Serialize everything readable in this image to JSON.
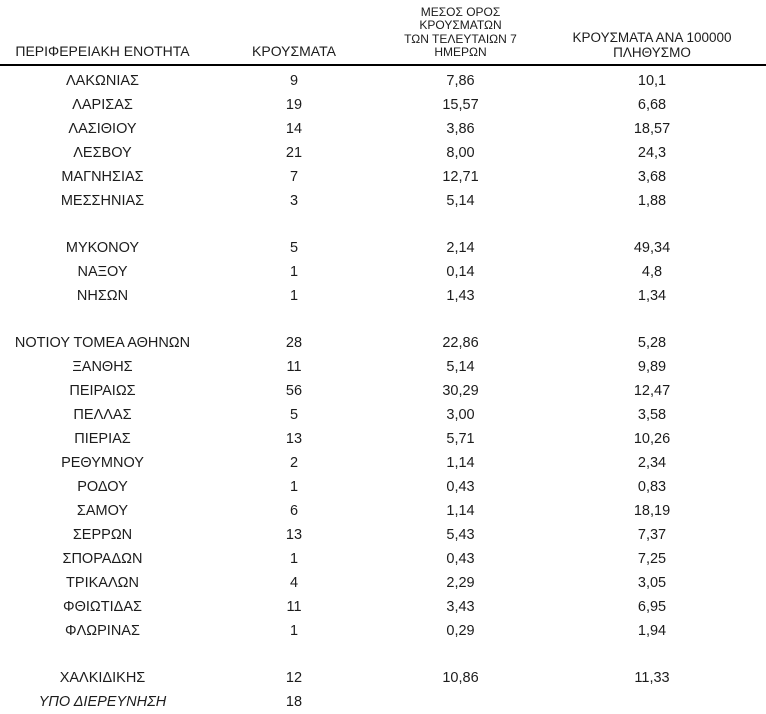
{
  "table": {
    "headers": {
      "region": "ΠΕΡΙΦΕΡΕΙΑΚΗ ΕΝΟΤΗΤΑ",
      "cases": "ΚΡΟΥΣΜΑΤΑ",
      "avg7_line1": "ΜΕΣΟΣ ΟΡΟΣ ΚΡΟΥΣΜΑΤΩΝ",
      "avg7_line2": "ΤΩΝ ΤΕΛΕΥΤΑΙΩΝ 7 ΗΜΕΡΩΝ",
      "per100k_line1": "ΚΡΟΥΣΜΑΤΑ ΑΝΑ 100000",
      "per100k_line2": "ΠΛΗΘΥΣΜΟ"
    },
    "rows": [
      {
        "region": "ΛΑΚΩΝΙΑΣ",
        "cases": "9",
        "avg7": "7,86",
        "per100k": "10,1"
      },
      {
        "region": "ΛΑΡΙΣΑΣ",
        "cases": "19",
        "avg7": "15,57",
        "per100k": "6,68"
      },
      {
        "region": "ΛΑΣΙΘΙΟΥ",
        "cases": "14",
        "avg7": "3,86",
        "per100k": "18,57"
      },
      {
        "region": "ΛΕΣΒΟΥ",
        "cases": "21",
        "avg7": "8,00",
        "per100k": "24,3"
      },
      {
        "region": "ΜΑΓΝΗΣΙΑΣ",
        "cases": "7",
        "avg7": "12,71",
        "per100k": "3,68"
      },
      {
        "region": "ΜΕΣΣΗΝΙΑΣ",
        "cases": "3",
        "avg7": "5,14",
        "per100k": "1,88"
      },
      {
        "blank": true
      },
      {
        "region": "ΜΥΚΟΝΟΥ",
        "cases": "5",
        "avg7": "2,14",
        "per100k": "49,34"
      },
      {
        "region": "ΝΑΞΟΥ",
        "cases": "1",
        "avg7": "0,14",
        "per100k": "4,8"
      },
      {
        "region": "ΝΗΣΩΝ",
        "cases": "1",
        "avg7": "1,43",
        "per100k": "1,34"
      },
      {
        "blank": true
      },
      {
        "region": "ΝΟΤΙΟΥ ΤΟΜΕΑ ΑΘΗΝΩΝ",
        "cases": "28",
        "avg7": "22,86",
        "per100k": "5,28"
      },
      {
        "region": "ΞΑΝΘΗΣ",
        "cases": "11",
        "avg7": "5,14",
        "per100k": "9,89"
      },
      {
        "region": "ΠΕΙΡΑΙΩΣ",
        "cases": "56",
        "avg7": "30,29",
        "per100k": "12,47"
      },
      {
        "region": "ΠΕΛΛΑΣ",
        "cases": "5",
        "avg7": "3,00",
        "per100k": "3,58"
      },
      {
        "region": "ΠΙΕΡΙΑΣ",
        "cases": "13",
        "avg7": "5,71",
        "per100k": "10,26"
      },
      {
        "region": "ΡΕΘΥΜΝΟΥ",
        "cases": "2",
        "avg7": "1,14",
        "per100k": "2,34"
      },
      {
        "region": "ΡΟΔΟΥ",
        "cases": "1",
        "avg7": "0,43",
        "per100k": "0,83"
      },
      {
        "region": "ΣΑΜΟΥ",
        "cases": "6",
        "avg7": "1,14",
        "per100k": "18,19"
      },
      {
        "region": "ΣΕΡΡΩΝ",
        "cases": "13",
        "avg7": "5,43",
        "per100k": "7,37"
      },
      {
        "region": "ΣΠΟΡΑΔΩΝ",
        "cases": "1",
        "avg7": "0,43",
        "per100k": "7,25"
      },
      {
        "region": "ΤΡΙΚΑΛΩΝ",
        "cases": "4",
        "avg7": "2,29",
        "per100k": "3,05"
      },
      {
        "region": "ΦΘΙΩΤΙΔΑΣ",
        "cases": "11",
        "avg7": "3,43",
        "per100k": "6,95"
      },
      {
        "region": "ΦΛΩΡΙΝΑΣ",
        "cases": "1",
        "avg7": "0,29",
        "per100k": "1,94"
      },
      {
        "blank": true
      },
      {
        "region": "ΧΑΛΚΙΔΙΚΗΣ",
        "cases": "12",
        "avg7": "10,86",
        "per100k": "11,33"
      },
      {
        "region": "ΥΠΟ ΔΙΕΡΕΥΝΗΣΗ",
        "cases": "18",
        "avg7": "",
        "per100k": "",
        "italic": true
      }
    ]
  },
  "colors": {
    "text": "#1c1c1c",
    "header_rule": "#000000",
    "background": "#ffffff"
  }
}
